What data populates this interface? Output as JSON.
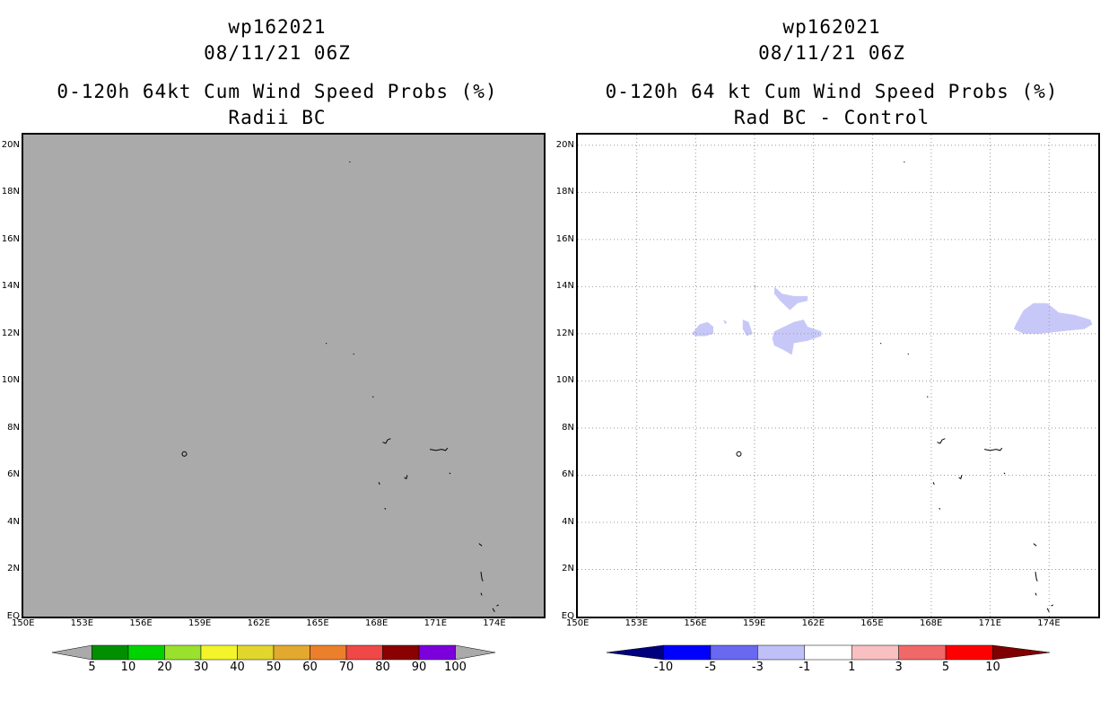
{
  "left": {
    "title1": "wp162021",
    "title2": "08/11/21 06Z",
    "title3": "0-120h 64kt Cum Wind Speed Probs (%)",
    "title4": "Radii BC",
    "background_color": "#aaaaaa",
    "colorbar": {
      "labels": [
        "5",
        "10",
        "20",
        "30",
        "40",
        "50",
        "60",
        "70",
        "80",
        "90",
        "100"
      ],
      "colors": [
        "#aaaaaa",
        "#008f00",
        "#00d400",
        "#99e12d",
        "#f4f42b",
        "#e0d62d",
        "#e2a830",
        "#ec7f2b",
        "#f04747",
        "#8b0000",
        "#7b00db",
        "#aaaaaa"
      ]
    }
  },
  "right": {
    "title1": "wp162021",
    "title2": "08/11/21 06Z",
    "title3": "0-120h 64 kt Cum Wind Speed Probs (%)",
    "title4": "Rad BC - Control",
    "background_color": "#ffffff",
    "shade_color": "#c8c8f8",
    "colorbar": {
      "labels": [
        "-10",
        "-5",
        "-3",
        "-1",
        "1",
        "3",
        "5",
        "10"
      ],
      "colors": [
        "#00007f",
        "#0000ff",
        "#6868f0",
        "#c0c0f8",
        "#ffffff",
        "#f8c0c0",
        "#f06868",
        "#ff0000",
        "#7f0000"
      ]
    }
  },
  "axes": {
    "lat_labels": [
      "20N",
      "18N",
      "16N",
      "14N",
      "12N",
      "10N",
      "8N",
      "6N",
      "4N",
      "2N",
      "EQ"
    ],
    "lon_labels": [
      "150E",
      "153E",
      "156E",
      "159E",
      "162E",
      "165E",
      "168E",
      "171E",
      "174E"
    ]
  }
}
